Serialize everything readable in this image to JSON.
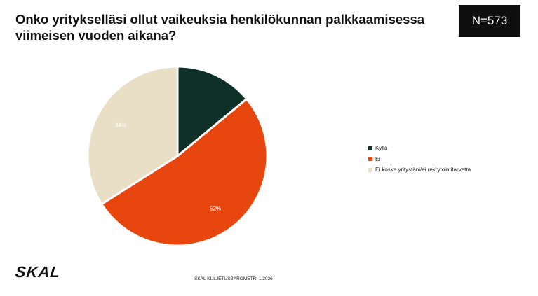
{
  "title": "Onko yritykselläsi ollut vaikeuksia henkilökunnan palkkaamisessa viimeisen vuoden aikana?",
  "sample_size_label": "N=573",
  "logo": "SKAL",
  "footer": "SKAL KULJETUSBAROMETRI 1/2026",
  "chart_data": {
    "type": "pie",
    "categories": [
      "Kyllä",
      "Ei",
      "Ei koske yritystäni/ei rekrytointitarvetta"
    ],
    "values": [
      14,
      52,
      34
    ],
    "labels": [
      "14%",
      "52%",
      "34%"
    ],
    "colors": [
      "#0f3027",
      "#e8460f",
      "#e8dfc6"
    ],
    "label_colors": [
      "#e8dfc6",
      "#ffffff",
      "#ffffff"
    ],
    "legend": "right"
  }
}
